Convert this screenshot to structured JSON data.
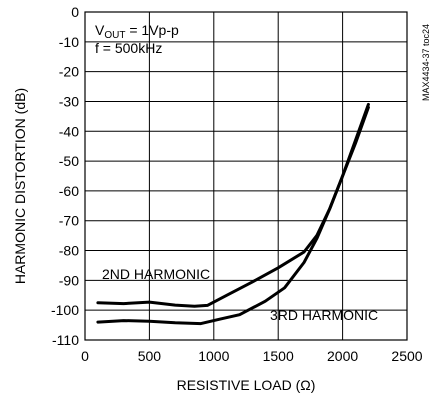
{
  "chart_data": {
    "type": "line",
    "xlabel": "RESISTIVE LOAD (Ω)",
    "ylabel": "HARMONIC DISTORTION (dB)",
    "xlim": [
      0,
      2500
    ],
    "ylim": [
      -110,
      0
    ],
    "x_ticks": [
      0,
      500,
      1000,
      1500,
      2000,
      2500
    ],
    "y_ticks": [
      0,
      -10,
      -20,
      -30,
      -40,
      -50,
      -60,
      -70,
      -80,
      -90,
      -100,
      -110
    ],
    "grid": true,
    "annotations": {
      "vout_prefix": "V",
      "vout_sub": "OUT",
      "vout_suffix": " = 1Vp-p",
      "freq": "f = 500kHz",
      "part_id": "MAX4434-37 toc24"
    },
    "series": [
      {
        "name": "2ND HARMONIC",
        "points": [
          [
            100,
            -97.5
          ],
          [
            300,
            -97.8
          ],
          [
            500,
            -97.3
          ],
          [
            700,
            -98.3
          ],
          [
            850,
            -98.7
          ],
          [
            950,
            -98.4
          ],
          [
            1100,
            -95
          ],
          [
            1300,
            -90.5
          ],
          [
            1500,
            -85.8
          ],
          [
            1700,
            -80.5
          ],
          [
            1800,
            -75
          ],
          [
            1900,
            -66
          ],
          [
            2000,
            -55
          ],
          [
            2100,
            -43
          ],
          [
            2200,
            -31
          ]
        ]
      },
      {
        "name": "3RD HARMONIC",
        "points": [
          [
            100,
            -104
          ],
          [
            300,
            -103.5
          ],
          [
            500,
            -103.7
          ],
          [
            700,
            -104.2
          ],
          [
            900,
            -104.5
          ],
          [
            1050,
            -103
          ],
          [
            1200,
            -101.5
          ],
          [
            1400,
            -97
          ],
          [
            1550,
            -92.5
          ],
          [
            1700,
            -84
          ],
          [
            1800,
            -76
          ],
          [
            1900,
            -66
          ],
          [
            2000,
            -55
          ],
          [
            2100,
            -44
          ],
          [
            2200,
            -32
          ]
        ]
      }
    ]
  }
}
